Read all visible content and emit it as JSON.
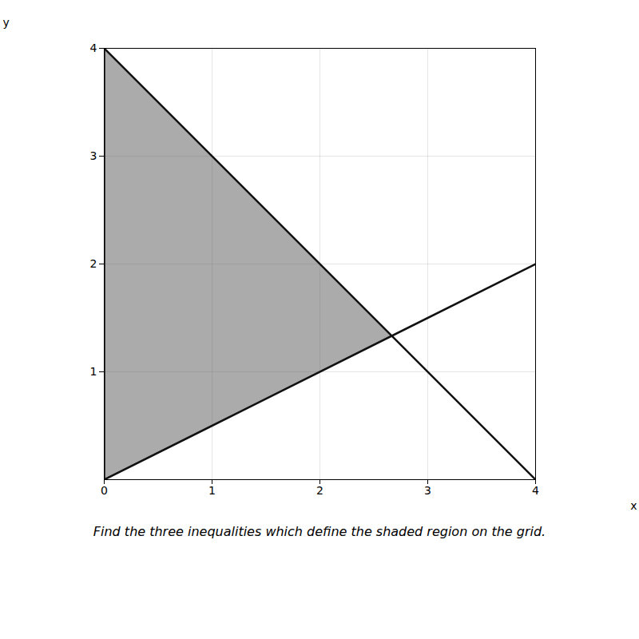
{
  "chart_data": {
    "type": "line",
    "title": "Find the three inequalities which define the shaded region on the grid.",
    "x_label": "x",
    "y_label": "y",
    "xlim": [
      0,
      4
    ],
    "ylim": [
      0,
      4
    ],
    "xticks": [
      0,
      1,
      2,
      3,
      4
    ],
    "yticks": [
      1,
      2,
      3,
      4
    ],
    "grid": true,
    "series": [
      {
        "type": "area",
        "color": "#666666",
        "x": [
          0,
          0,
          2.6667
        ],
        "values": [
          0,
          4,
          1.3333
        ]
      },
      {
        "color": "#111111",
        "x": [
          0,
          4
        ],
        "values": [
          4,
          0
        ]
      },
      {
        "color": "#111111",
        "x": [
          0,
          4
        ],
        "values": [
          0,
          2
        ]
      },
      {
        "color": "#111111",
        "x": [
          0,
          0
        ],
        "values": [
          0,
          4
        ]
      }
    ]
  }
}
